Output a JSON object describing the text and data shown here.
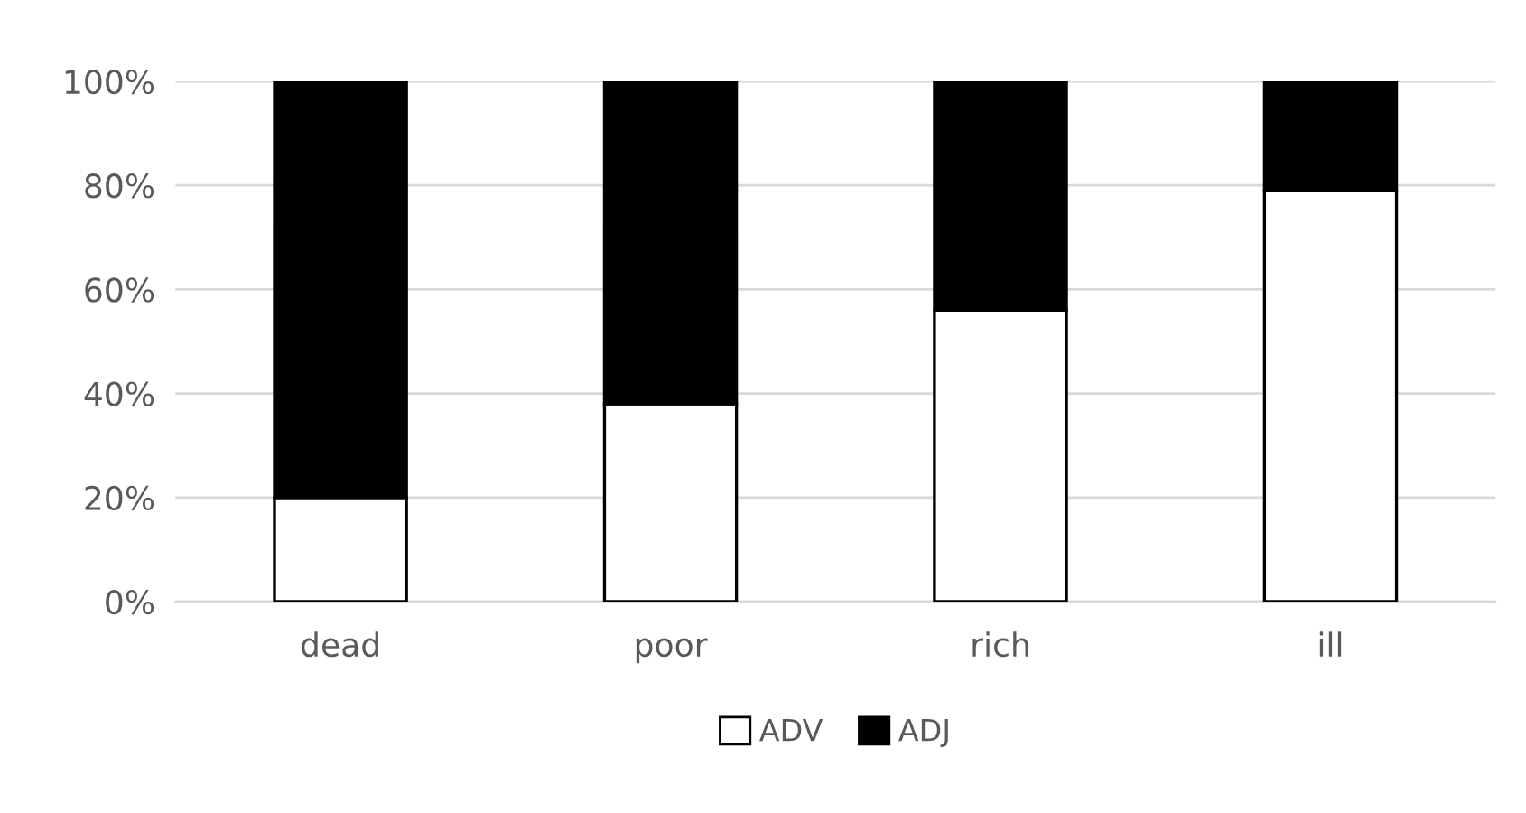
{
  "chart_data": {
    "type": "bar",
    "stacked": true,
    "categories": [
      "dead",
      "poor",
      "rich",
      "ill"
    ],
    "series": [
      {
        "name": "ADV",
        "color": "#ffffff",
        "values": [
          20,
          38,
          56,
          79
        ]
      },
      {
        "name": "ADJ",
        "color": "#000000",
        "values": [
          80,
          62,
          44,
          21
        ]
      }
    ],
    "ylim": [
      0,
      100
    ],
    "yticks": [
      {
        "value": 0,
        "label": "0%"
      },
      {
        "value": 20,
        "label": "20%"
      },
      {
        "value": 40,
        "label": "40%"
      },
      {
        "value": 60,
        "label": "60%"
      },
      {
        "value": 80,
        "label": "80%"
      },
      {
        "value": 100,
        "label": "100%"
      }
    ],
    "grid": "y",
    "legend": "bottom"
  }
}
